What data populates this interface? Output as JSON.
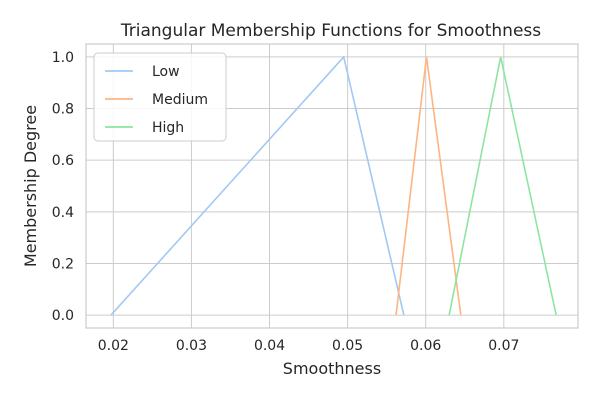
{
  "chart_data": {
    "type": "line",
    "title": "Triangular Membership Functions for Smoothness",
    "xlabel": "Smoothness",
    "ylabel": "Membership Degree",
    "xlim": [
      0.0165,
      0.0795
    ],
    "ylim": [
      -0.05,
      1.05
    ],
    "xticks": [
      0.02,
      0.03,
      0.04,
      0.05,
      0.06,
      0.07
    ],
    "xtick_labels": [
      "0.02",
      "0.03",
      "0.04",
      "0.05",
      "0.06",
      "0.07"
    ],
    "yticks": [
      0.0,
      0.2,
      0.4,
      0.6,
      0.8,
      1.0
    ],
    "ytick_labels": [
      "0.0",
      "0.2",
      "0.4",
      "0.6",
      "0.8",
      "1.0"
    ],
    "grid": true,
    "legend_position": "top-left",
    "series": [
      {
        "name": "Low",
        "color": "#a1c9f4",
        "x": [
          0.0197,
          0.0495,
          0.0572
        ],
        "y": [
          0,
          1,
          0
        ]
      },
      {
        "name": "Medium",
        "color": "#ffb482",
        "x": [
          0.0562,
          0.0601,
          0.0645
        ],
        "y": [
          0,
          1,
          0
        ]
      },
      {
        "name": "High",
        "color": "#8de5a1",
        "x": [
          0.063,
          0.0696,
          0.0767
        ],
        "y": [
          0,
          1,
          0
        ]
      }
    ]
  }
}
